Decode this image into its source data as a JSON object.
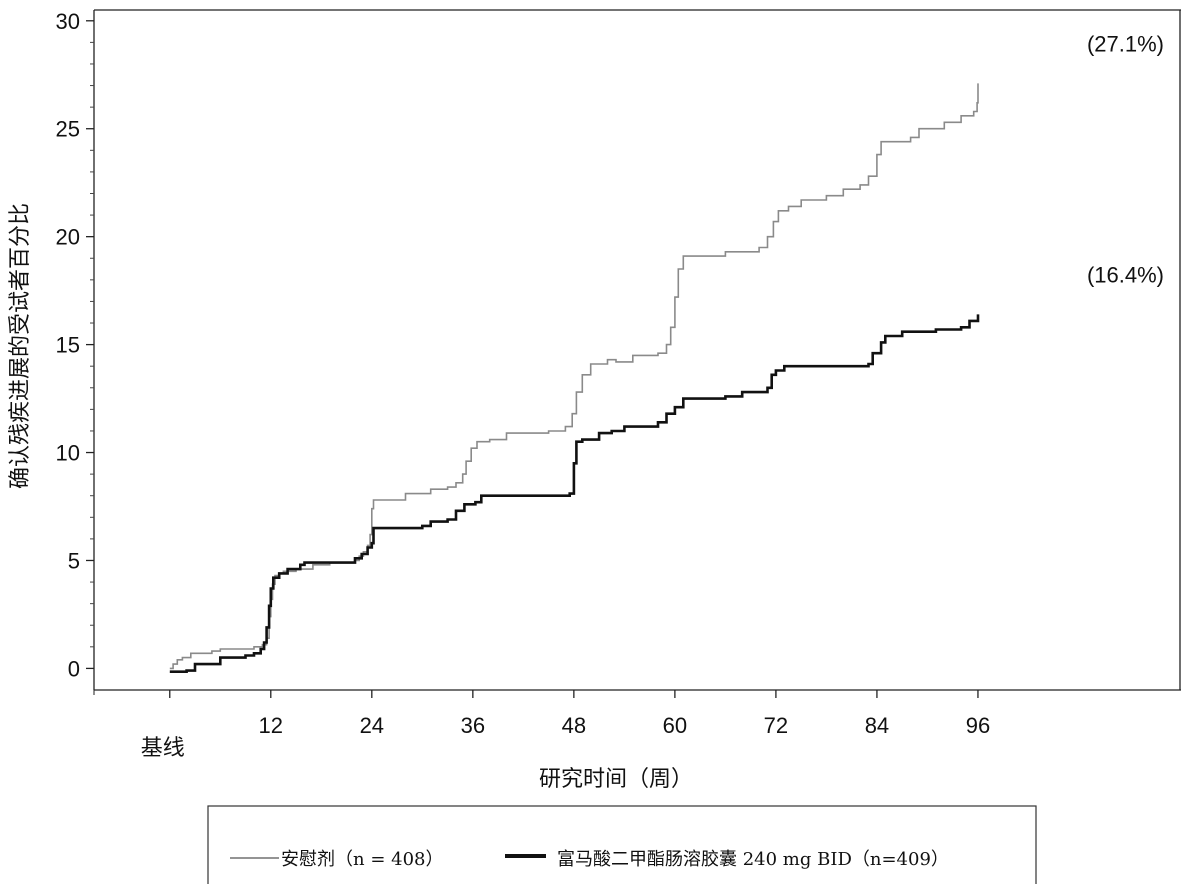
{
  "chart_data": {
    "type": "line",
    "xlabel": "研究时间（周）",
    "ylabel": "确认残疾进展的受试者百分比",
    "xlim": [
      -9,
      120
    ],
    "ylim": [
      -1,
      30.5
    ],
    "x_ticks": [
      0,
      12,
      24,
      36,
      48,
      60,
      72,
      84,
      96
    ],
    "x_tick_labels": [
      "基线",
      "12",
      "24",
      "36",
      "48",
      "60",
      "72",
      "84",
      "96"
    ],
    "y_ticks": [
      0,
      5,
      10,
      15,
      20,
      25,
      30
    ],
    "y_tick_labels": [
      "0",
      "5",
      "10",
      "15",
      "20",
      "25",
      "30"
    ],
    "grid": false,
    "legend_position": "bottom",
    "series": [
      {
        "name": "安慰剂（n = 408）",
        "color": "#8a8a8a",
        "style": "thin",
        "end_label": "(27.1%)",
        "points": [
          [
            0,
            0
          ],
          [
            0.4,
            0.2
          ],
          [
            0.9,
            0.4
          ],
          [
            1.5,
            0.5
          ],
          [
            2.5,
            0.7
          ],
          [
            5,
            0.8
          ],
          [
            6,
            0.9
          ],
          [
            10,
            1.0
          ],
          [
            11,
            1.1
          ],
          [
            11.5,
            1.4
          ],
          [
            11.8,
            2.4
          ],
          [
            12,
            3.2
          ],
          [
            12.2,
            3.9
          ],
          [
            12.5,
            4.3
          ],
          [
            13,
            4.4
          ],
          [
            13.5,
            4.5
          ],
          [
            15,
            4.6
          ],
          [
            17,
            4.8
          ],
          [
            19,
            4.9
          ],
          [
            22,
            5.0
          ],
          [
            22.5,
            5.2
          ],
          [
            23,
            5.4
          ],
          [
            23.5,
            5.7
          ],
          [
            23.8,
            6.2
          ],
          [
            24,
            7.4
          ],
          [
            24.2,
            7.8
          ],
          [
            28,
            8.1
          ],
          [
            31,
            8.3
          ],
          [
            33,
            8.4
          ],
          [
            34,
            8.6
          ],
          [
            34.8,
            9.0
          ],
          [
            35.2,
            9.6
          ],
          [
            35.8,
            10.2
          ],
          [
            36.5,
            10.5
          ],
          [
            38,
            10.6
          ],
          [
            40,
            10.9
          ],
          [
            45,
            11.0
          ],
          [
            47,
            11.2
          ],
          [
            47.8,
            11.8
          ],
          [
            48.3,
            12.8
          ],
          [
            49,
            13.6
          ],
          [
            50,
            14.1
          ],
          [
            52,
            14.3
          ],
          [
            53,
            14.2
          ],
          [
            55,
            14.5
          ],
          [
            58,
            14.6
          ],
          [
            59,
            15.0
          ],
          [
            59.5,
            15.8
          ],
          [
            60,
            17.2
          ],
          [
            60.4,
            18.5
          ],
          [
            61,
            19.1
          ],
          [
            66,
            19.3
          ],
          [
            70,
            19.5
          ],
          [
            71,
            20.0
          ],
          [
            71.7,
            20.7
          ],
          [
            72.3,
            21.2
          ],
          [
            73.5,
            21.4
          ],
          [
            75,
            21.7
          ],
          [
            78,
            21.9
          ],
          [
            80,
            22.2
          ],
          [
            82,
            22.4
          ],
          [
            83,
            22.8
          ],
          [
            84,
            23.8
          ],
          [
            84.5,
            24.4
          ],
          [
            88,
            24.6
          ],
          [
            89,
            25.0
          ],
          [
            92,
            25.3
          ],
          [
            94,
            25.6
          ],
          [
            95.5,
            25.8
          ],
          [
            95.9,
            26.2
          ],
          [
            96,
            27.1
          ]
        ]
      },
      {
        "name": "富马酸二甲酯肠溶胶囊 240 mg BID（n=409）",
        "color": "#111111",
        "style": "thick",
        "end_label": "(16.4%)",
        "points": [
          [
            0,
            -0.15
          ],
          [
            2,
            -0.1
          ],
          [
            3,
            0.2
          ],
          [
            6,
            0.5
          ],
          [
            9,
            0.6
          ],
          [
            10,
            0.7
          ],
          [
            10.8,
            0.9
          ],
          [
            11.2,
            1.2
          ],
          [
            11.5,
            1.9
          ],
          [
            11.8,
            2.9
          ],
          [
            12,
            3.7
          ],
          [
            12.3,
            4.2
          ],
          [
            13,
            4.4
          ],
          [
            14,
            4.6
          ],
          [
            15.5,
            4.8
          ],
          [
            16,
            4.9
          ],
          [
            22,
            5.1
          ],
          [
            22.8,
            5.3
          ],
          [
            23.5,
            5.6
          ],
          [
            24,
            5.8
          ],
          [
            24.2,
            6.5
          ],
          [
            30,
            6.6
          ],
          [
            31,
            6.8
          ],
          [
            33,
            6.9
          ],
          [
            34,
            7.3
          ],
          [
            35,
            7.6
          ],
          [
            36.3,
            7.7
          ],
          [
            37,
            8.0
          ],
          [
            47.5,
            8.1
          ],
          [
            48,
            9.5
          ],
          [
            48.3,
            10.5
          ],
          [
            49,
            10.6
          ],
          [
            51,
            10.9
          ],
          [
            52.5,
            11.0
          ],
          [
            54,
            11.2
          ],
          [
            58,
            11.4
          ],
          [
            59,
            11.8
          ],
          [
            60,
            12.1
          ],
          [
            61,
            12.5
          ],
          [
            66,
            12.6
          ],
          [
            68,
            12.8
          ],
          [
            71,
            13.0
          ],
          [
            71.5,
            13.6
          ],
          [
            72,
            13.8
          ],
          [
            73,
            14.0
          ],
          [
            78,
            14.0
          ],
          [
            83,
            14.1
          ],
          [
            83.5,
            14.6
          ],
          [
            84.5,
            15.1
          ],
          [
            85,
            15.4
          ],
          [
            87,
            15.6
          ],
          [
            91,
            15.7
          ],
          [
            94,
            15.8
          ],
          [
            95,
            16.1
          ],
          [
            96,
            16.4
          ]
        ]
      }
    ]
  }
}
